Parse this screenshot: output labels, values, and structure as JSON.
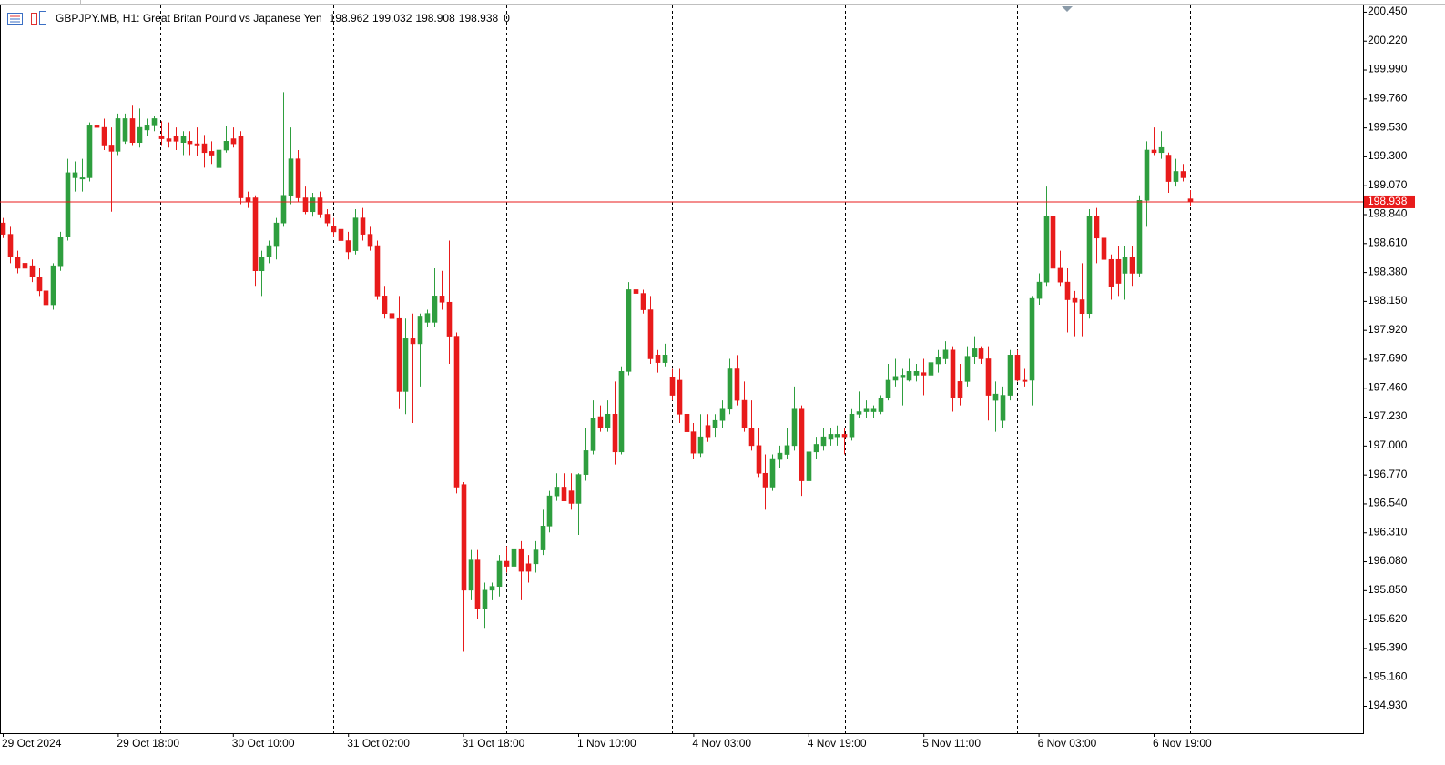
{
  "chart_data": {
    "type": "candlestick",
    "title": "GBPJPY.MB, H1:  Great Britan Pound vs Japanese Yen",
    "spread": 0,
    "up_color": "#2e9e3e",
    "down_color": "#e81b1b",
    "price_line_color": "#e81b1b",
    "grid": false,
    "ylim": [
      194.713,
      200.493
    ],
    "yticks": [
      {
        "value": 200.45,
        "label": "200.450"
      },
      {
        "value": 200.22,
        "label": "200.220"
      },
      {
        "value": 199.99,
        "label": "199.990"
      },
      {
        "value": 199.76,
        "label": "199.760"
      },
      {
        "value": 199.53,
        "label": "199.530"
      },
      {
        "value": 199.3,
        "label": "199.300"
      },
      {
        "value": 199.07,
        "label": "199.070"
      },
      {
        "value": 198.84,
        "label": "198.840"
      },
      {
        "value": 198.61,
        "label": "198.610"
      },
      {
        "value": 198.38,
        "label": "198.380"
      },
      {
        "value": 198.15,
        "label": "198.150"
      },
      {
        "value": 197.92,
        "label": "197.920"
      },
      {
        "value": 197.69,
        "label": "197.690"
      },
      {
        "value": 197.46,
        "label": "197.460"
      },
      {
        "value": 197.23,
        "label": "197.230"
      },
      {
        "value": 197.0,
        "label": "197.000"
      },
      {
        "value": 196.77,
        "label": "196.770"
      },
      {
        "value": 196.54,
        "label": "196.540"
      },
      {
        "value": 196.31,
        "label": "196.310"
      },
      {
        "value": 196.08,
        "label": "196.080"
      },
      {
        "value": 195.85,
        "label": "195.850"
      },
      {
        "value": 195.62,
        "label": "195.620"
      },
      {
        "value": 195.39,
        "label": "195.390"
      },
      {
        "value": 195.16,
        "label": "195.160"
      },
      {
        "value": 194.93,
        "label": "194.930"
      }
    ],
    "categories": [
      "29 Oct 2024",
      null,
      null,
      null,
      null,
      null,
      null,
      null,
      null,
      null,
      null,
      null,
      null,
      null,
      null,
      null,
      "29 Oct 18:00",
      null,
      null,
      null,
      null,
      null,
      null,
      null,
      null,
      null,
      null,
      null,
      null,
      null,
      null,
      null,
      "30 Oct 10:00",
      null,
      null,
      null,
      null,
      null,
      null,
      null,
      null,
      null,
      null,
      null,
      null,
      null,
      null,
      null,
      "31 Oct 02:00",
      null,
      null,
      null,
      null,
      null,
      null,
      null,
      null,
      null,
      null,
      null,
      null,
      null,
      null,
      null,
      "31 Oct 18:00",
      null,
      null,
      null,
      null,
      null,
      null,
      null,
      null,
      null,
      null,
      null,
      null,
      null,
      null,
      null,
      "1 Nov 10:00",
      null,
      null,
      null,
      null,
      null,
      null,
      null,
      null,
      null,
      null,
      null,
      null,
      null,
      null,
      null,
      "4 Nov 03:00",
      null,
      null,
      null,
      null,
      null,
      null,
      null,
      null,
      null,
      null,
      null,
      null,
      null,
      null,
      null,
      "4 Nov 19:00",
      null,
      null,
      null,
      null,
      null,
      null,
      null,
      null,
      null,
      null,
      null,
      null,
      null,
      null,
      null,
      "5 Nov 11:00",
      null,
      null,
      null,
      null,
      null,
      null,
      null,
      null,
      null,
      null,
      null,
      null,
      null,
      null,
      null,
      "6 Nov 03:00",
      null,
      null,
      null,
      null,
      null,
      null,
      null,
      null,
      null,
      null,
      null,
      null,
      null,
      null,
      null,
      "6 Nov 19:00",
      null,
      null,
      null,
      null,
      null
    ],
    "open": [
      198.77,
      198.68,
      198.5,
      198.45,
      198.43,
      198.34,
      198.23,
      198.12,
      198.43,
      198.66,
      199.13,
      199.12,
      199.13,
      199.55,
      199.53,
      199.39,
      199.34,
      199.42,
      199.6,
      199.41,
      199.51,
      199.55,
      199.46,
      199.44,
      199.46,
      199.41,
      199.42,
      199.4,
      199.4,
      199.34,
      199.21,
      199.35,
      199.44,
      199.46,
      198.97,
      198.97,
      198.39,
      198.5,
      198.59,
      198.77,
      198.99,
      199.28,
      198.97,
      198.86,
      198.97,
      198.84,
      198.74,
      198.72,
      198.63,
      198.55,
      198.81,
      198.68,
      198.59,
      198.19,
      198.05,
      198.01,
      197.43,
      197.85,
      197.81,
      197.98,
      197.98,
      198.19,
      198.14,
      197.87,
      196.69,
      195.85,
      196.09,
      195.7,
      195.85,
      195.88,
      196.08,
      196.04,
      196.18,
      196.06,
      196.06,
      196.17,
      196.36,
      196.6,
      196.67,
      196.64,
      196.54,
      196.77,
      196.96,
      197.23,
      197.14,
      197.25,
      196.95,
      197.59,
      198.24,
      198.21,
      198.08,
      197.72,
      197.66,
      197.54,
      197.52,
      197.25,
      197.11,
      196.94,
      197.16,
      197.14,
      197.2,
      197.29,
      197.61,
      197.36,
      197.14,
      197.0,
      196.78,
      196.67,
      196.89,
      196.93,
      197.0,
      197.29,
      196.72,
      196.95,
      197.0,
      197.05,
      197.07,
      197.09,
      197.07,
      197.25,
      197.27,
      197.27,
      197.27,
      197.38,
      197.52,
      197.54,
      197.52,
      197.56,
      197.58,
      197.56,
      197.65,
      197.69,
      197.76,
      197.51,
      197.51,
      197.71,
      197.77,
      197.69,
      197.36,
      197.2,
      197.4,
      197.72,
      197.52,
      197.52,
      198.17,
      198.3,
      198.82,
      198.41,
      198.3,
      198.17,
      198.16,
      198.05,
      198.82,
      198.65,
      198.48,
      198.48,
      198.37,
      198.5,
      198.37,
      198.95,
      199.35,
      199.33,
      199.31,
      199.1,
      199.18,
      198.962
    ],
    "high": [
      198.81,
      198.74,
      198.55,
      198.48,
      198.48,
      198.41,
      198.3,
      198.45,
      198.7,
      199.28,
      199.26,
      199.28,
      199.57,
      199.68,
      199.6,
      199.53,
      199.64,
      199.64,
      199.71,
      199.68,
      199.6,
      199.62,
      199.58,
      199.57,
      199.53,
      199.5,
      199.5,
      199.53,
      199.47,
      199.42,
      199.4,
      199.54,
      199.53,
      199.5,
      199.02,
      198.99,
      198.55,
      198.63,
      198.81,
      199.81,
      199.53,
      199.35,
      199.06,
      199.01,
      199.02,
      198.88,
      198.81,
      198.77,
      198.7,
      198.88,
      198.89,
      198.74,
      198.63,
      198.27,
      198.16,
      198.19,
      198.01,
      198.05,
      198.05,
      198.08,
      198.41,
      198.39,
      198.63,
      197.9,
      196.71,
      196.17,
      196.17,
      195.91,
      195.91,
      196.13,
      196.2,
      196.27,
      196.24,
      196.13,
      196.24,
      196.49,
      196.64,
      196.78,
      196.78,
      196.78,
      196.78,
      197.14,
      197.36,
      197.32,
      197.36,
      197.51,
      197.63,
      198.3,
      198.37,
      198.24,
      198.19,
      197.76,
      197.81,
      197.61,
      197.61,
      197.29,
      197.18,
      197.25,
      197.25,
      197.25,
      197.36,
      197.69,
      197.72,
      197.51,
      197.36,
      197.14,
      196.93,
      196.93,
      197.0,
      197.14,
      197.47,
      197.32,
      197.14,
      197.07,
      197.14,
      197.14,
      197.16,
      197.14,
      197.29,
      197.43,
      197.36,
      197.32,
      197.4,
      197.65,
      197.69,
      197.61,
      197.69,
      197.65,
      197.69,
      197.72,
      197.76,
      197.83,
      197.79,
      197.65,
      197.79,
      197.87,
      197.79,
      197.79,
      197.51,
      197.47,
      197.76,
      197.76,
      197.61,
      198.19,
      198.37,
      199.06,
      199.06,
      198.55,
      198.41,
      198.23,
      198.45,
      198.88,
      198.89,
      198.77,
      198.52,
      198.59,
      198.59,
      198.59,
      198.99,
      199.42,
      199.53,
      199.5,
      199.33,
      199.28,
      199.24,
      199.032
    ],
    "low": [
      198.65,
      198.45,
      198.37,
      198.34,
      198.3,
      198.19,
      198.03,
      198.08,
      198.39,
      198.63,
      199.02,
      199.02,
      199.1,
      199.5,
      199.35,
      198.86,
      199.31,
      199.4,
      199.39,
      199.37,
      199.46,
      199.5,
      199.39,
      199.37,
      199.35,
      199.31,
      199.31,
      199.3,
      199.21,
      199.24,
      199.17,
      199.33,
      199.37,
      198.92,
      198.89,
      198.27,
      198.19,
      198.45,
      198.48,
      198.74,
      198.92,
      198.94,
      198.84,
      198.82,
      198.81,
      198.74,
      198.66,
      198.55,
      198.48,
      198.52,
      198.63,
      198.55,
      198.16,
      198.01,
      197.99,
      197.29,
      197.25,
      197.18,
      197.47,
      197.94,
      197.94,
      198.08,
      197.65,
      196.62,
      195.36,
      195.77,
      195.62,
      195.55,
      195.77,
      195.8,
      195.99,
      196.0,
      195.77,
      195.91,
      195.99,
      196.13,
      196.31,
      196.56,
      196.56,
      196.49,
      196.29,
      196.72,
      196.93,
      197.11,
      197.11,
      196.85,
      196.93,
      197.56,
      198.16,
      198.05,
      197.65,
      197.58,
      197.63,
      197.36,
      197.18,
      197.0,
      196.89,
      196.91,
      197.03,
      197.07,
      197.14,
      197.25,
      197.32,
      197.11,
      196.96,
      196.75,
      196.49,
      196.64,
      196.82,
      196.89,
      196.96,
      196.6,
      196.64,
      196.89,
      196.96,
      197.0,
      197.0,
      196.93,
      197.04,
      197.22,
      197.22,
      197.22,
      197.25,
      197.36,
      197.47,
      197.32,
      197.51,
      197.51,
      197.4,
      197.51,
      197.58,
      197.65,
      197.27,
      197.32,
      197.47,
      197.65,
      197.65,
      197.2,
      197.11,
      197.14,
      197.36,
      197.51,
      197.47,
      197.32,
      198.12,
      198.27,
      198.19,
      198.27,
      197.9,
      197.87,
      197.87,
      198.01,
      198.45,
      198.37,
      198.16,
      198.19,
      198.16,
      198.27,
      198.34,
      198.74,
      199.31,
      199.28,
      199.01,
      199.06,
      199.1,
      198.908
    ],
    "close": [
      198.68,
      198.5,
      198.41,
      198.41,
      198.34,
      198.23,
      198.12,
      198.43,
      198.66,
      199.17,
      199.17,
      199.13,
      199.55,
      199.53,
      199.39,
      199.34,
      199.6,
      199.6,
      199.41,
      199.53,
      199.55,
      199.6,
      199.44,
      199.42,
      199.42,
      199.46,
      199.4,
      199.39,
      199.33,
      199.31,
      199.35,
      199.42,
      199.4,
      198.97,
      198.94,
      198.39,
      198.5,
      198.59,
      198.77,
      198.99,
      199.28,
      198.97,
      198.86,
      198.97,
      198.84,
      198.77,
      198.7,
      198.63,
      198.54,
      198.81,
      198.68,
      198.59,
      198.19,
      198.05,
      198.01,
      197.43,
      197.85,
      197.81,
      198.03,
      198.05,
      198.19,
      198.14,
      197.87,
      196.67,
      195.85,
      196.09,
      195.7,
      195.85,
      195.88,
      196.08,
      196.04,
      196.18,
      196.0,
      196.0,
      196.17,
      196.36,
      196.6,
      196.67,
      196.56,
      196.54,
      196.77,
      196.96,
      197.22,
      197.14,
      197.25,
      196.95,
      197.59,
      198.24,
      198.21,
      198.08,
      197.69,
      197.66,
      197.72,
      197.4,
      197.25,
      197.11,
      196.94,
      197.07,
      197.07,
      197.2,
      197.29,
      197.61,
      197.36,
      197.14,
      197.0,
      196.78,
      196.67,
      196.89,
      196.94,
      197.0,
      197.29,
      196.72,
      196.95,
      197.01,
      197.07,
      197.09,
      197.09,
      197.07,
      197.25,
      197.27,
      197.29,
      197.29,
      197.38,
      197.52,
      197.55,
      197.56,
      197.59,
      197.59,
      197.56,
      197.66,
      197.7,
      197.76,
      197.38,
      197.38,
      197.71,
      197.77,
      197.69,
      197.4,
      197.41,
      197.4,
      197.72,
      197.52,
      197.51,
      198.17,
      198.3,
      198.82,
      198.41,
      198.3,
      198.16,
      198.14,
      198.05,
      198.82,
      198.65,
      198.48,
      198.26,
      198.29,
      198.5,
      198.37,
      198.95,
      199.35,
      199.33,
      199.37,
      199.1,
      199.18,
      199.13,
      198.938
    ]
  }
}
